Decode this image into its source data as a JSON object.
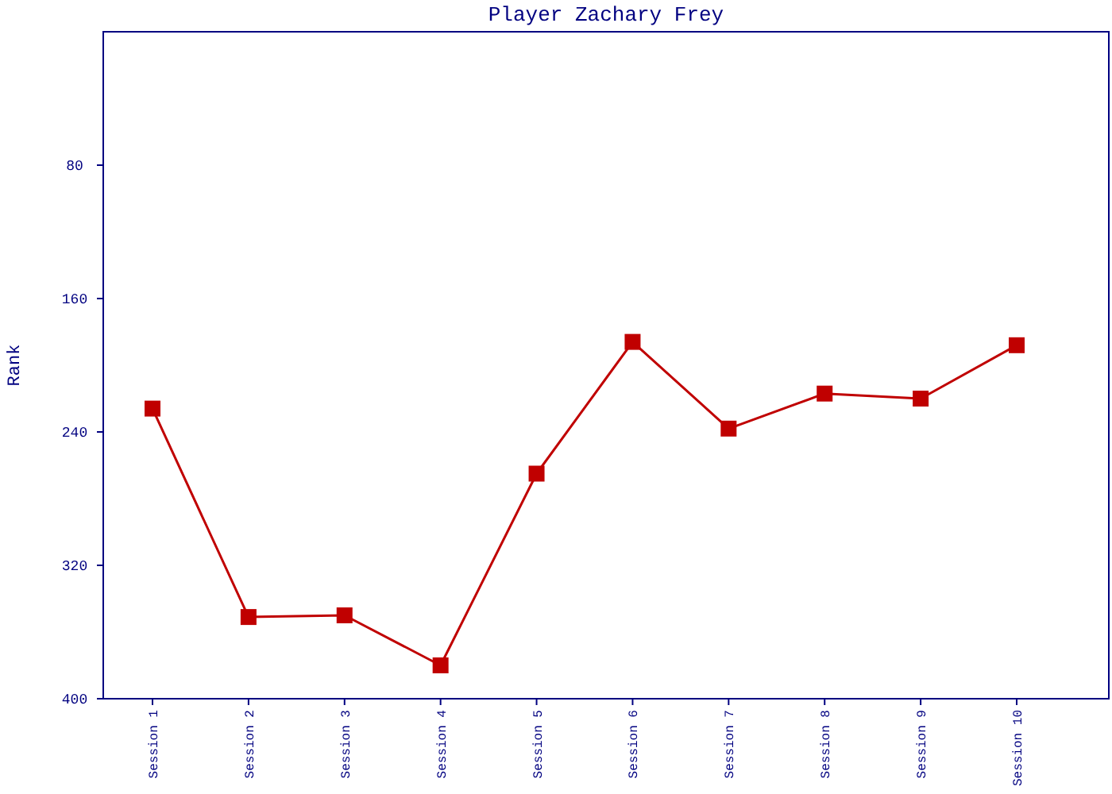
{
  "chart_data": {
    "type": "line",
    "title": "Player Zachary Frey",
    "ylabel": "Rank",
    "categories": [
      "Session 1",
      "Session 2",
      "Session 3",
      "Session 4",
      "Session 5",
      "Session 6",
      "Session 7",
      "Session 8",
      "Session 9",
      "Session 10"
    ],
    "series": [
      {
        "color": "#c00000",
        "values": [
          226,
          351,
          350,
          380,
          265,
          186,
          238,
          217,
          220,
          188
        ]
      }
    ],
    "ylim": [
      400,
      0
    ],
    "yticks": [
      80,
      160,
      240,
      320,
      400
    ],
    "grid": false,
    "marker": "square",
    "line_style": "solid"
  }
}
